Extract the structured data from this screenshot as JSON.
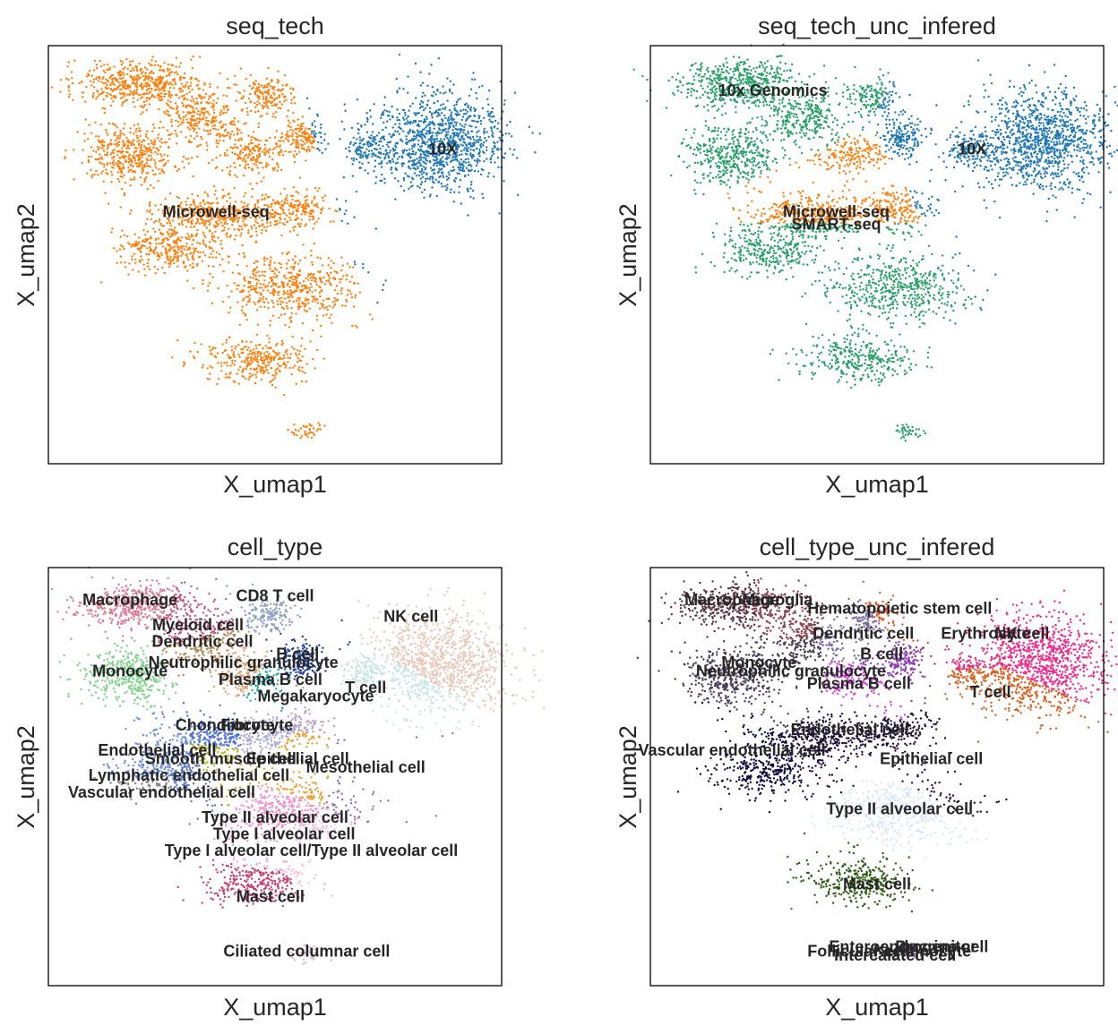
{
  "chart_data": [
    {
      "type": "scatter",
      "title": "seq_tech",
      "xlabel": "X_umap1",
      "ylabel": "X_umap2",
      "legend": "on data",
      "grid": false,
      "categories": [
        {
          "name": "10X",
          "color": "#1f77b4",
          "x": 8.7,
          "y": 6.9
        },
        {
          "name": "Microwell-seq",
          "color": "#ff7f0e",
          "x": 3.7,
          "y": 5.4
        }
      ]
    },
    {
      "type": "scatter",
      "title": "seq_tech_unc_infered",
      "xlabel": "X_umap1",
      "ylabel": "X_umap2",
      "legend": "on data",
      "grid": false,
      "categories": [
        {
          "name": "10x Genomics",
          "color": "#279e68",
          "x": 2.7,
          "y": 8.3
        },
        {
          "name": "10X",
          "color": "#1f77b4",
          "x": 7.1,
          "y": 6.9
        },
        {
          "name": "Microwell-seq",
          "color": "#ff7f0e",
          "x": 4.1,
          "y": 5.4
        },
        {
          "name": "SMART-seq",
          "color": "#279e68",
          "x": 4.1,
          "y": 5.1
        }
      ]
    },
    {
      "type": "scatter",
      "title": "cell_type",
      "xlabel": "X_umap1",
      "ylabel": "X_umap2",
      "legend": "on data",
      "grid": false,
      "categories": [
        {
          "name": "Macrophage",
          "color": "#d87d97",
          "x": 1.8,
          "y": 8.6
        },
        {
          "name": "CD8 T cell",
          "color": "#8b9fc4",
          "x": 5.0,
          "y": 8.7
        },
        {
          "name": "NK cell",
          "color": "#e8c8b8",
          "x": 8.0,
          "y": 8.2
        },
        {
          "name": "Myeloid cell",
          "color": "#c05a7a",
          "x": 3.3,
          "y": 8.0
        },
        {
          "name": "Dendritic cell",
          "color": "#b08a50",
          "x": 3.4,
          "y": 7.6
        },
        {
          "name": "B cell",
          "color": "#1f3f9c",
          "x": 5.5,
          "y": 7.3
        },
        {
          "name": "Neutrophilic granulocyte",
          "color": "#e0a070",
          "x": 4.3,
          "y": 7.1
        },
        {
          "name": "Monocyte",
          "color": "#7fd18a",
          "x": 1.8,
          "y": 6.9
        },
        {
          "name": "Plasma B cell",
          "color": "#2aa6a6",
          "x": 4.9,
          "y": 6.7
        },
        {
          "name": "T cell",
          "color": "#c8e4e0",
          "x": 7.0,
          "y": 6.5
        },
        {
          "name": "Megakaryocyte",
          "color": "#b7a0c8",
          "x": 5.9,
          "y": 6.3
        },
        {
          "name": "Chondrocyte",
          "color": "#4a6fd9",
          "x": 3.9,
          "y": 5.6
        },
        {
          "name": "Fibrocyte",
          "color": "#a8a8d8",
          "x": 4.6,
          "y": 5.6
        },
        {
          "name": "Endothelial cell",
          "color": "#6c8ee0",
          "x": 2.4,
          "y": 5.0
        },
        {
          "name": "Smooth muscle cell",
          "color": "#b8b828",
          "x": 3.8,
          "y": 4.8
        },
        {
          "name": "Epithelial cell",
          "color": "#e8a030",
          "x": 5.5,
          "y": 4.8
        },
        {
          "name": "Mesothelial cell",
          "color": "#9a6ab0",
          "x": 7.0,
          "y": 4.6
        },
        {
          "name": "Lymphatic endothelial cell",
          "color": "#5a7ac8",
          "x": 3.1,
          "y": 4.4
        },
        {
          "name": "Vascular endothelial cell",
          "color": "#808080",
          "x": 2.5,
          "y": 4.0
        },
        {
          "name": "Type II alveolar cell",
          "color": "#f090c8",
          "x": 5.0,
          "y": 3.4
        },
        {
          "name": "Type I alveolar cell",
          "color": "#e8b0d8",
          "x": 5.2,
          "y": 3.0
        },
        {
          "name": "Type I alveolar cell/Type II alveolar cell",
          "color": "#f4c0e0",
          "x": 5.8,
          "y": 2.6
        },
        {
          "name": "Mast cell",
          "color": "#c83c6e",
          "x": 4.9,
          "y": 1.5
        },
        {
          "name": "Ciliated columnar cell",
          "color": "#d8b8c8",
          "x": 5.7,
          "y": 0.2
        }
      ]
    },
    {
      "type": "scatter",
      "title": "cell_type_unc_infered",
      "xlabel": "X_umap1",
      "ylabel": "X_umap2",
      "legend": "on data",
      "grid": false,
      "categories": [
        {
          "name": "Macrophage",
          "color": "#5a3040",
          "x": 1.8,
          "y": 8.6
        },
        {
          "name": "Microglia",
          "color": "#8a4050",
          "x": 2.8,
          "y": 8.6
        },
        {
          "name": "Hematopoietic stem cell",
          "color": "#e05a30",
          "x": 5.5,
          "y": 8.4
        },
        {
          "name": "Dendritic cell",
          "color": "#7a6aa0",
          "x": 4.7,
          "y": 7.8
        },
        {
          "name": "Erythrocyte",
          "color": "#e82a7a",
          "x": 7.4,
          "y": 7.8
        },
        {
          "name": "NK cell",
          "color": "#f02a8a",
          "x": 8.2,
          "y": 7.8
        },
        {
          "name": "B cell",
          "color": "#8a3ab0",
          "x": 5.1,
          "y": 7.3
        },
        {
          "name": "Monocyte",
          "color": "#4a3a5a",
          "x": 2.4,
          "y": 7.1
        },
        {
          "name": "Neutrophilic granulocyte",
          "color": "#4a3a50",
          "x": 3.1,
          "y": 6.9
        },
        {
          "name": "Plasma B cell",
          "color": "#d040d8",
          "x": 4.6,
          "y": 6.6
        },
        {
          "name": "T cell",
          "color": "#d8601e",
          "x": 7.5,
          "y": 6.4
        },
        {
          "name": "Endothelial cell",
          "color": "#1a0a3a",
          "x": 4.4,
          "y": 5.5
        },
        {
          "name": "Epithelial cell",
          "color": "#2a0a30",
          "x": 6.2,
          "y": 4.8
        },
        {
          "name": "Vascular endothelial cell",
          "color": "#0a0a40",
          "x": 1.8,
          "y": 5.0
        },
        {
          "name": "Type II alveolar cell",
          "color": "#d8e8f8",
          "x": 5.5,
          "y": 3.6
        },
        {
          "name": "Mast cell",
          "color": "#2a5a10",
          "x": 5.0,
          "y": 1.8
        },
        {
          "name": "Follicular cell",
          "color": "#6a5a8a",
          "x": 4.6,
          "y": 0.2
        },
        {
          "name": "Enteroendocrine cell",
          "color": "#8a6a9a",
          "x": 5.7,
          "y": 0.3
        },
        {
          "name": "Intercalated cell",
          "color": "#9a7aaa",
          "x": 5.4,
          "y": 0.1
        },
        {
          "name": "Keratinocyte",
          "color": "#b88ab8",
          "x": 6.0,
          "y": 0.2
        },
        {
          "name": "Progenitor",
          "color": "#c898c8",
          "x": 6.3,
          "y": 0.3
        }
      ]
    }
  ]
}
